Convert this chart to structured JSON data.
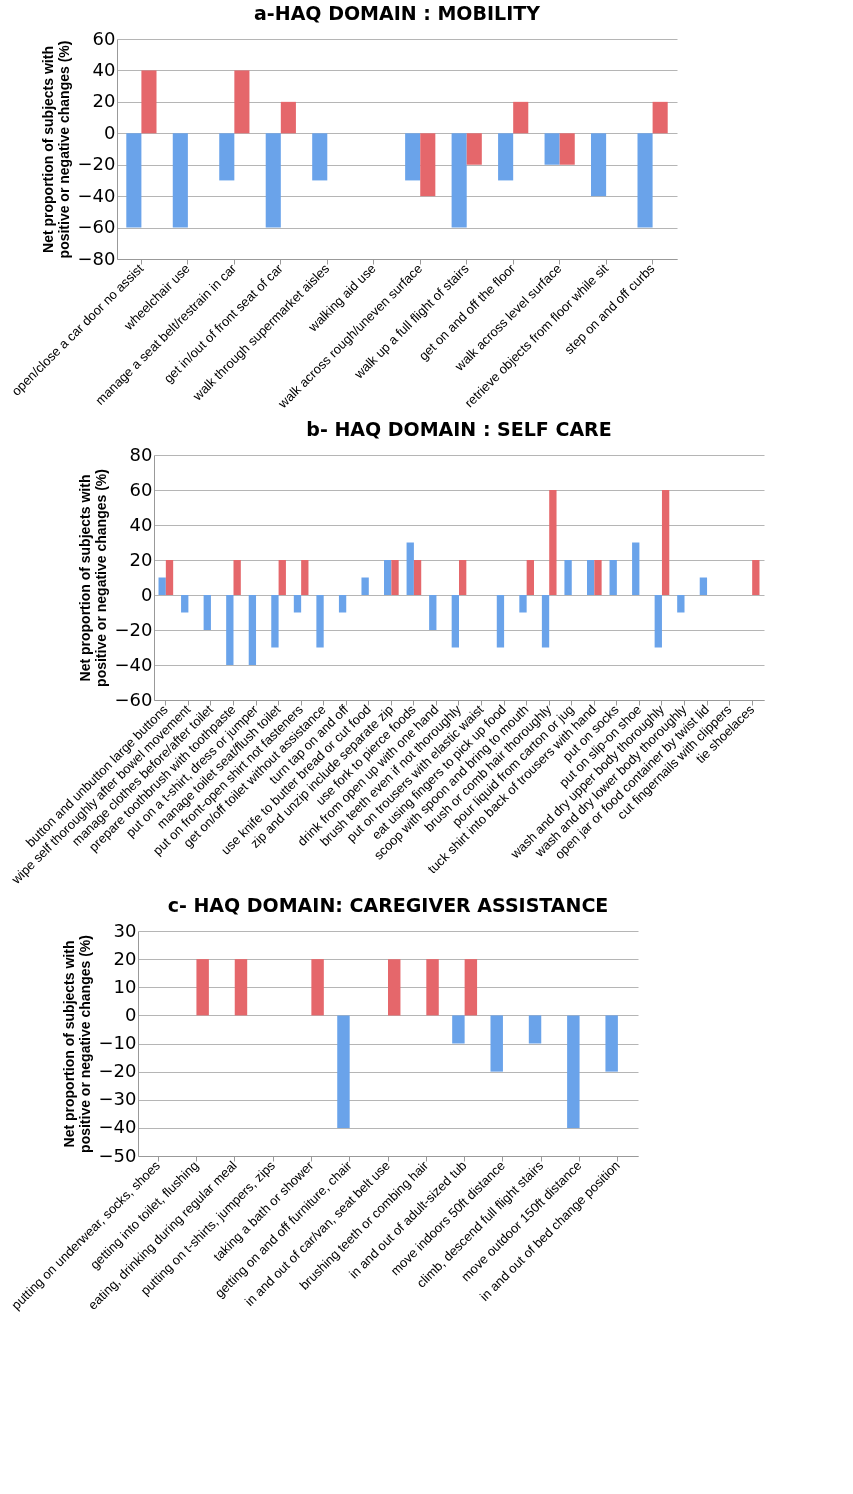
{
  "chart_data": [
    {
      "type": "bar",
      "title": "a-HAQ DOMAIN : MOBILITY",
      "ylabel": "Net proportion of subjects with positive or negative changes (%)",
      "categories": [
        "open/close a car door no assist",
        "wheelchair use",
        "manage a seat belt/restrain in car",
        "get in/out of front seat of car",
        "walk through supermarket aisles",
        "walking aid use",
        "walk across rough/uneven surface",
        "walk up a full flight of stairs",
        "get on and off the floor",
        "walk across level surface",
        "retrieve objects from floor while sit",
        "step on and off curbs"
      ],
      "series": [
        {
          "color": "#6aa3ea",
          "values": [
            -60,
            -60,
            -30,
            -60,
            -30,
            null,
            -30,
            -60,
            -30,
            -20,
            -40,
            -60
          ]
        },
        {
          "color": "#e5676b",
          "values": [
            40,
            null,
            40,
            20,
            null,
            null,
            -40,
            -20,
            20,
            -20,
            null,
            20
          ]
        }
      ],
      "ylim": [
        -80,
        60
      ],
      "yticks": [
        -80,
        -60,
        -40,
        -20,
        0,
        20,
        40,
        60
      ],
      "grid": "y"
    },
    {
      "type": "bar",
      "title": "b- HAQ  DOMAIN : SELF CARE",
      "ylabel": "Net proportion of subjects with positive or negative changes (%)",
      "categories": [
        "button and unbutton large buttons",
        "wipe self thoroughly after bowel movement",
        "manage clothes before/after toilet",
        "prepare toothbrush  with toothpaste",
        "put on a t-shirt, dress or jumper",
        "manage toilet seat/flush toilet",
        "put on front-open shirt not fasteners",
        "get on/off toilet without assistance",
        "turn tap on and off",
        "use knife to butter bread or cut food",
        "zip and unzip include separate zip",
        "use  fork to pierce foods",
        "drink from open up with one hand",
        "brush teeth even if not thoroughly",
        "put on trousers with elastic waist",
        "eat using fingers to pick up food",
        "scoop with spoon and bring to mouth",
        "brush or comb hair thoroughly",
        "pour liquid from carton or jug",
        "tuck shirt into back of trousers with hand",
        "put on socks",
        "put on slip-on shoe",
        "wash and dry upper body thoroughly",
        "wash and dry lower body thoroughly",
        "open jar or food container by twist lid",
        "cut fingernails with clippers",
        "tie shoelaces"
      ],
      "series": [
        {
          "color": "#6aa3ea",
          "values": [
            10,
            -10,
            -20,
            -40,
            -40,
            -30,
            -10,
            -30,
            -10,
            10,
            20,
            30,
            -20,
            -30,
            null,
            -30,
            -10,
            -30,
            20,
            20,
            20,
            30,
            -30,
            -10,
            10,
            null,
            null
          ]
        },
        {
          "color": "#e5676b",
          "values": [
            20,
            null,
            null,
            20,
            null,
            20,
            20,
            null,
            null,
            null,
            20,
            20,
            null,
            20,
            null,
            null,
            20,
            60,
            null,
            20,
            null,
            null,
            60,
            null,
            null,
            null,
            20
          ]
        }
      ],
      "ylim": [
        -60,
        80
      ],
      "yticks": [
        -60,
        -40,
        -20,
        0,
        20,
        40,
        60,
        80
      ],
      "grid": "y"
    },
    {
      "type": "bar",
      "title": "c- HAQ DOMAIN: CAREGIVER ASSISTANCE",
      "ylabel": "Net proportion of subjects with positive or negative changes (%)",
      "categories": [
        "putting on underwear, socks, shoes",
        "getting into toilet, flushing",
        "eating, drinking during regular meal",
        "putting on t-shirts, jumpers, zips",
        "taking a bath or shower",
        "getting on and off furniture, chair",
        "in and out of car/van, seat belt use",
        "brushing teeth or combing hair",
        "in and out of adult-sized tub",
        "move indoors 50ft distance",
        "climb, descend full flight stairs",
        "move outdoor 150ft distance",
        "in and out of bed change position"
      ],
      "series": [
        {
          "color": "#6aa3ea",
          "values": [
            null,
            null,
            null,
            null,
            null,
            -40,
            null,
            null,
            -10,
            -20,
            -10,
            -40,
            -20
          ]
        },
        {
          "color": "#e5676b",
          "values": [
            null,
            20,
            20,
            null,
            20,
            null,
            20,
            20,
            20,
            null,
            null,
            null,
            null
          ]
        }
      ],
      "ylim": [
        -50,
        30
      ],
      "yticks": [
        -50,
        -40,
        -30,
        -20,
        -10,
        0,
        10,
        20,
        30
      ],
      "grid": "y"
    }
  ]
}
